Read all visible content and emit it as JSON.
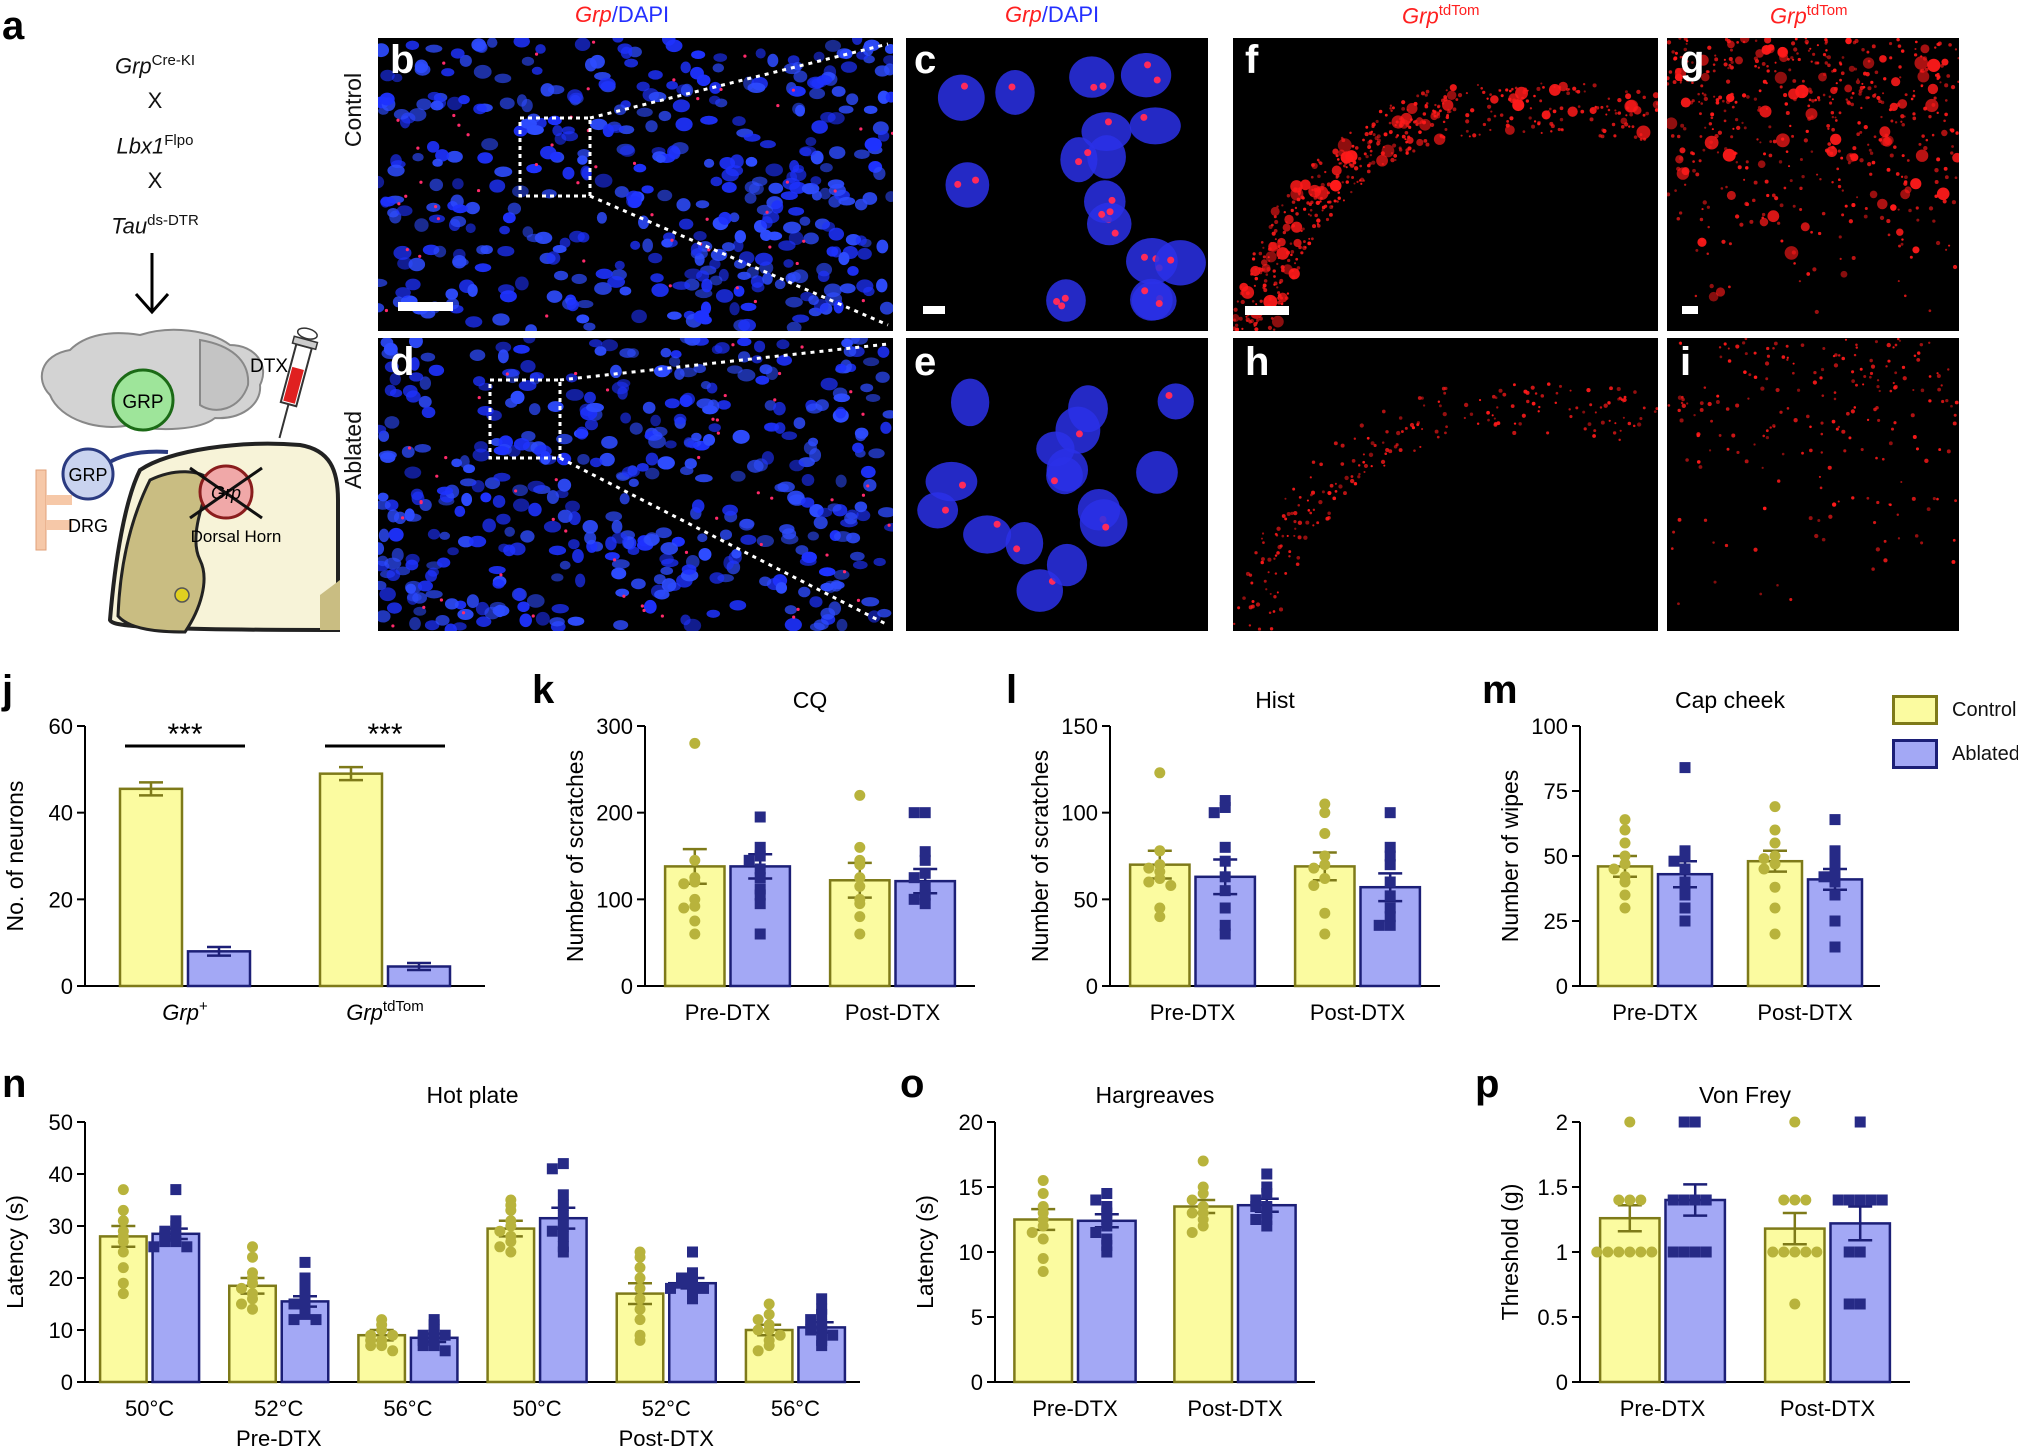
{
  "panel_letters": [
    "a",
    "b",
    "c",
    "d",
    "e",
    "f",
    "g",
    "h",
    "i",
    "j",
    "k",
    "l",
    "m",
    "n",
    "o",
    "p"
  ],
  "schematic": {
    "cross1": "Grp",
    "cross1_sup": "Cre-KI",
    "x1": "X",
    "cross2": "Lbx1",
    "cross2_sup": "Flpo",
    "x2": "X",
    "cross3": "Tau",
    "cross3_sup": "ds-DTR",
    "brain_label": "GRP",
    "dtx_label": "DTX",
    "drg_circle_label": "GRP",
    "drg_label": "DRG",
    "crossed_label": "Grp",
    "dorsal_horn_label": "Dorsal Horn"
  },
  "image_headers": {
    "bc_red": "Grp",
    "bc_sep": "/",
    "bc_blue": "DAPI",
    "fg_red": "Grp",
    "fg_sup": "tdTom"
  },
  "row_labels": {
    "top": "Control",
    "bottom": "Ablated"
  },
  "legend": [
    {
      "name": "Control",
      "color": "#fbfba0",
      "edge": "#7e7a19"
    },
    {
      "name": "Ablated",
      "color": "#a3a8f5",
      "edge": "#1c1f77"
    }
  ],
  "colors": {
    "control_fill": "#fbfba0",
    "control_edge": "#7e7a19",
    "control_dot": "#b8b33c",
    "ablated_fill": "#a3a8f5",
    "ablated_edge": "#1c1f77",
    "ablated_dot": "#262a86"
  },
  "chart_data": [
    {
      "panel": "j",
      "type": "bar",
      "title": "",
      "ylabel": "No. of neurons",
      "ylim": [
        0,
        60
      ],
      "yticks": [
        "0",
        "20",
        "40",
        "60"
      ],
      "categories": [
        "Grp+",
        "GrptdTom"
      ],
      "category_labels": [
        {
          "main": "Grp",
          "sup": "+"
        },
        {
          "main": "Grp",
          "sup": "tdTom"
        }
      ],
      "series": [
        {
          "name": "Control",
          "values": [
            45.5,
            49
          ],
          "errors": [
            1.5,
            1.5
          ]
        },
        {
          "name": "Ablated",
          "values": [
            8,
            4.5
          ],
          "errors": [
            1,
            0.8
          ]
        }
      ],
      "significance": [
        "***",
        "***"
      ]
    },
    {
      "panel": "k",
      "type": "bar",
      "title": "CQ",
      "ylabel": "Number of scratches",
      "ylim": [
        0,
        300
      ],
      "yticks": [
        "0",
        "100",
        "200",
        "300"
      ],
      "categories": [
        "Pre-DTX",
        "Post-DTX"
      ],
      "series": [
        {
          "name": "Control",
          "values": [
            138,
            122
          ],
          "errors": [
            20,
            20
          ],
          "points": [
            [
              280,
              145,
              125,
              120,
              118,
              100,
              92,
              90,
              75,
              60
            ],
            [
              220,
              160,
              145,
              140,
              125,
              115,
              100,
              95,
              80,
              60
            ]
          ]
        },
        {
          "name": "Ablated",
          "values": [
            138,
            121
          ],
          "errors": [
            14,
            14
          ],
          "points": [
            [
              195,
              160,
              150,
              145,
              135,
              125,
              112,
              105,
              95,
              60
            ],
            [
              200,
              200,
              155,
              145,
              130,
              125,
              115,
              105,
              100,
              95
            ]
          ]
        }
      ]
    },
    {
      "panel": "l",
      "type": "bar",
      "title": "Hist",
      "ylabel": "Number of scratches",
      "ylim": [
        0,
        150
      ],
      "yticks": [
        "0",
        "50",
        "100",
        "150"
      ],
      "categories": [
        "Pre-DTX",
        "Post-DTX"
      ],
      "series": [
        {
          "name": "Control",
          "values": [
            70,
            69
          ],
          "errors": [
            8,
            8
          ],
          "points": [
            [
              123,
              78,
              70,
              68,
              66,
              62,
              60,
              58,
              45,
              40
            ],
            [
              105,
              100,
              88,
              75,
              70,
              68,
              62,
              58,
              42,
              30
            ]
          ]
        },
        {
          "name": "Ablated",
          "values": [
            63,
            57
          ],
          "errors": [
            10,
            8
          ],
          "points": [
            [
              107,
              103,
              100,
              80,
              72,
              63,
              55,
              45,
              35,
              30
            ],
            [
              100,
              80,
              75,
              70,
              60,
              52,
              45,
              40,
              35,
              35
            ]
          ]
        }
      ]
    },
    {
      "panel": "m",
      "type": "bar",
      "title": "Cap cheek",
      "ylabel": "Number of wipes",
      "ylim": [
        0,
        100
      ],
      "yticks": [
        "0",
        "25",
        "50",
        "75",
        "100"
      ],
      "categories": [
        "Pre-DTX",
        "Post-DTX"
      ],
      "series": [
        {
          "name": "Control",
          "values": [
            46,
            48
          ],
          "errors": [
            4,
            4
          ],
          "points": [
            [
              64,
              60,
              55,
              50,
              47,
              45,
              42,
              40,
              35,
              30
            ],
            [
              69,
              60,
              55,
              50,
              49,
              47,
              45,
              38,
              30,
              20
            ]
          ]
        },
        {
          "name": "Ablated",
          "values": [
            43,
            41
          ],
          "errors": [
            5,
            4
          ],
          "points": [
            [
              84,
              52,
              50,
              48,
              45,
              40,
              37,
              35,
              30,
              25
            ],
            [
              64,
              52,
              50,
              46,
              43,
              42,
              40,
              35,
              25,
              15
            ]
          ]
        }
      ]
    },
    {
      "panel": "n",
      "type": "bar",
      "title": "Hot plate",
      "ylabel": "Latency (s)",
      "ylim": [
        0,
        50
      ],
      "yticks": [
        "0",
        "10",
        "20",
        "30",
        "40",
        "50"
      ],
      "categories": [
        "50°C",
        "52°C",
        "56°C",
        "50°C",
        "52°C",
        "56°C"
      ],
      "groups": [
        "Pre-DTX",
        "Post-DTX"
      ],
      "series": [
        {
          "name": "Control",
          "values": [
            28,
            18.5,
            9,
            29.5,
            17,
            10
          ],
          "errors": [
            2,
            1.5,
            1,
            1.5,
            2,
            1
          ],
          "points": [
            [
              37,
              33,
              31,
              29,
              28,
              27,
              25,
              22,
              19,
              17
            ],
            [
              26,
              24,
              21,
              20,
              19,
              18,
              17,
              16,
              15,
              14
            ],
            [
              12,
              11,
              10,
              9,
              9,
              8,
              8,
              7,
              7,
              6
            ],
            [
              35,
              34,
              33,
              31,
              30,
              29,
              28,
              27,
              26,
              25
            ],
            [
              25,
              24,
              22,
              20,
              18,
              16,
              14,
              12,
              9,
              8
            ],
            [
              15,
              13,
              12,
              11,
              10,
              10,
              9,
              8,
              7,
              6
            ]
          ]
        },
        {
          "name": "Ablated",
          "values": [
            28.5,
            15.5,
            8.5,
            31.5,
            19,
            10.5
          ],
          "errors": [
            1,
            1,
            0.8,
            2,
            1,
            1
          ],
          "points": [
            [
              37,
              31,
              30,
              29,
              28,
              28,
              27,
              27,
              26,
              26
            ],
            [
              23,
              20,
              19,
              17,
              16,
              15,
              14,
              13,
              12,
              12
            ],
            [
              12,
              11,
              10,
              9,
              9,
              8,
              8,
              7,
              7,
              6
            ],
            [
              42,
              41,
              36,
              34,
              32,
              30,
              29,
              28,
              26,
              25
            ],
            [
              25,
              21,
              20,
              20,
              19,
              19,
              18,
              18,
              17,
              16
            ],
            [
              16,
              14,
              13,
              12,
              11,
              10,
              10,
              9,
              8,
              7
            ]
          ]
        }
      ]
    },
    {
      "panel": "o",
      "type": "bar",
      "title": "Hargreaves",
      "ylabel": "Latency (s)",
      "ylim": [
        0,
        20
      ],
      "yticks": [
        "0",
        "5",
        "10",
        "15",
        "20"
      ],
      "categories": [
        "Pre-DTX",
        "Post-DTX"
      ],
      "series": [
        {
          "name": "Control",
          "values": [
            12.5,
            13.5
          ],
          "errors": [
            0.8,
            0.5
          ],
          "points": [
            [
              15.5,
              14.5,
              13.5,
              13,
              12.5,
              12,
              11.5,
              11,
              9.5,
              8.5
            ],
            [
              17,
              15,
              14.5,
              14,
              13.5,
              13,
              13,
              12.5,
              12,
              11.5
            ]
          ]
        },
        {
          "name": "Ablated",
          "values": [
            12.4,
            13.6
          ],
          "errors": [
            0.5,
            0.5
          ],
          "points": [
            [
              14.5,
              14,
              13.5,
              13,
              12.5,
              12,
              11.5,
              11,
              10.5,
              10
            ],
            [
              16,
              15,
              14.5,
              14,
              13.5,
              13.5,
              13,
              12.5,
              12.5,
              12
            ]
          ]
        }
      ]
    },
    {
      "panel": "p",
      "type": "bar",
      "title": "Von Frey",
      "ylabel": "Threshold (g)",
      "ylim": [
        0,
        2
      ],
      "yticks": [
        "0",
        "0.5",
        "1",
        "1.5",
        "2"
      ],
      "categories": [
        "Pre-DTX",
        "Post-DTX"
      ],
      "series": [
        {
          "name": "Control",
          "values": [
            1.26,
            1.18
          ],
          "errors": [
            0.1,
            0.12
          ],
          "points": [
            [
              2,
              1.4,
              1.4,
              1.4,
              1,
              1,
              1,
              1,
              1,
              1
            ],
            [
              2,
              1.4,
              1.4,
              1.4,
              1,
              1,
              1,
              1,
              1,
              0.6
            ]
          ]
        },
        {
          "name": "Ablated",
          "values": [
            1.4,
            1.22
          ],
          "errors": [
            0.12,
            0.13
          ],
          "points": [
            [
              2,
              2,
              1.4,
              1.4,
              1.4,
              1.4,
              1,
              1,
              1,
              1
            ],
            [
              2,
              1.4,
              1.4,
              1.4,
              1.4,
              1.4,
              1,
              1,
              0.6,
              0.6
            ]
          ]
        }
      ]
    }
  ]
}
